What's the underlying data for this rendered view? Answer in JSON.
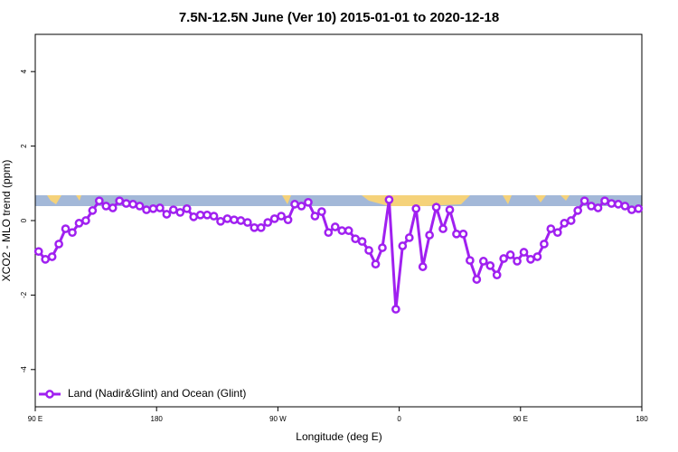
{
  "chart_data": {
    "type": "line",
    "title": "7.5N-12.5N June (Ver 10)   2015-01-01 to 2020-12-18",
    "xlabel": "Longitude (deg E)",
    "ylabel": "XCO2 - MLO trend (ppm)",
    "xlim": [
      90,
      540
    ],
    "ylim": [
      -5,
      5
    ],
    "xticks": [
      {
        "value": 90,
        "label": "90 E"
      },
      180,
      {
        "value": 270,
        "label": "90 W"
      },
      {
        "value": 360,
        "label": "0"
      },
      {
        "value": 450,
        "label": "90 E"
      },
      {
        "value": 540,
        "label": "180"
      }
    ],
    "yticks": [
      -4,
      -2,
      0,
      2,
      4
    ],
    "legend": "bottom-left",
    "x": [
      92.5,
      97.5,
      102.5,
      107.5,
      112.5,
      117.5,
      122.5,
      127.5,
      132.5,
      137.5,
      142.5,
      147.5,
      152.5,
      157.5,
      162.5,
      167.5,
      172.5,
      177.5,
      182.5,
      187.5,
      192.5,
      197.5,
      202.5,
      207.5,
      212.5,
      217.5,
      222.5,
      227.5,
      232.5,
      237.5,
      242.5,
      247.5,
      252.5,
      257.5,
      262.5,
      267.5,
      272.5,
      277.5,
      282.5,
      287.5,
      292.5,
      297.5,
      302.5,
      307.5,
      312.5,
      317.5,
      322.5,
      327.5,
      332.5,
      337.5,
      342.5,
      347.5,
      352.5,
      357.5,
      362.5,
      367.5,
      372.5,
      377.5,
      382.5,
      387.5,
      392.5,
      397.5,
      402.5,
      407.5,
      412.5,
      417.5,
      422.5,
      427.5,
      432.5,
      437.5,
      442.5,
      447.5,
      452.5,
      457.5,
      462.5,
      467.5,
      472.5,
      477.5,
      482.5,
      487.5,
      492.5,
      497.5,
      502.5,
      507.5,
      512.5,
      517.5,
      522.5,
      527.5,
      532.5,
      537.5
    ],
    "series": [
      {
        "name": "Land (Nadir&Glint) and Ocean (Glint)",
        "color": "#a020f0",
        "values": [
          -0.83,
          -1.04,
          -0.97,
          -0.63,
          -0.22,
          -0.32,
          -0.07,
          0.0,
          0.27,
          0.53,
          0.39,
          0.34,
          0.53,
          0.46,
          0.44,
          0.39,
          0.29,
          0.32,
          0.34,
          0.17,
          0.29,
          0.22,
          0.32,
          0.1,
          0.15,
          0.15,
          0.12,
          -0.02,
          0.05,
          0.02,
          0.0,
          -0.05,
          -0.19,
          -0.19,
          -0.05,
          0.05,
          0.12,
          0.02,
          0.44,
          0.39,
          0.49,
          0.12,
          0.24,
          -0.32,
          -0.17,
          -0.27,
          -0.27,
          -0.49,
          -0.56,
          -0.8,
          -1.17,
          -0.73,
          0.56,
          -2.38,
          -0.68,
          -0.46,
          0.32,
          -1.24,
          -0.39,
          0.36,
          -0.22,
          0.29,
          -0.36,
          -0.36,
          -1.07,
          -1.58,
          -1.09,
          -1.21,
          -1.46,
          -1.02,
          -0.92,
          -1.09,
          -0.85,
          -1.04,
          -0.97,
          -0.63,
          -0.22,
          -0.32,
          -0.07,
          0.0,
          0.27,
          0.53,
          0.39,
          0.34,
          0.53,
          0.46,
          0.44,
          0.39,
          0.29,
          0.32
        ]
      }
    ]
  }
}
